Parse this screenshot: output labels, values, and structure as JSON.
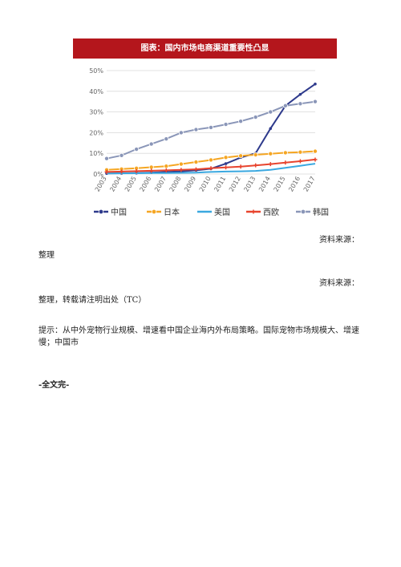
{
  "chart_title": "图表：国内市场电商渠道重要性凸显",
  "chart_data": {
    "type": "line",
    "title": "图表：国内市场电商渠道重要性凸显",
    "categories": [
      "2003",
      "2004",
      "2005",
      "2006",
      "2007",
      "2008",
      "2009",
      "2010",
      "2011",
      "2012",
      "2013",
      "2014",
      "2015",
      "2016",
      "2017"
    ],
    "y_ticks": [
      "0%",
      "10%",
      "20%",
      "30%",
      "40%",
      "50%"
    ],
    "ylim": [
      0,
      50
    ],
    "legend_position": "bottom",
    "series": [
      {
        "name": "中国",
        "color": "#2e3a8c",
        "marker": "dot",
        "values": [
          0.3,
          0.4,
          0.5,
          0.7,
          1,
          1.3,
          1.8,
          2.6,
          5,
          8,
          10,
          22,
          33,
          38.5,
          43.5
        ]
      },
      {
        "name": "日本",
        "color": "#f5a623",
        "marker": "circle",
        "values": [
          2,
          2.4,
          2.8,
          3.3,
          3.8,
          4.8,
          5.8,
          6.8,
          8,
          8.8,
          9.3,
          9.8,
          10.3,
          10.6,
          11
        ]
      },
      {
        "name": "美国",
        "color": "#3aa8e0",
        "marker": "none",
        "values": [
          0.3,
          0.35,
          0.4,
          0.45,
          0.5,
          0.6,
          0.7,
          1,
          1.2,
          1.3,
          1.5,
          2,
          3,
          4,
          5
        ]
      },
      {
        "name": "西欧",
        "color": "#e8442e",
        "marker": "star",
        "values": [
          1,
          1.2,
          1.4,
          1.6,
          1.8,
          2,
          2.3,
          2.8,
          3.2,
          3.6,
          4.2,
          4.8,
          5.5,
          6.2,
          7
        ]
      },
      {
        "name": "韩国",
        "color": "#8a96b8",
        "marker": "circle",
        "values": [
          7.5,
          9,
          12,
          14.5,
          17,
          20,
          21.5,
          22.5,
          24,
          25.5,
          27.5,
          30,
          33,
          34,
          35
        ]
      }
    ]
  },
  "texts": {
    "source1": "资料来源：",
    "organize1": "整理",
    "source2": "资料来源：",
    "organize2": "整理，转载请注明出处（TC）",
    "tip": "提示：从中外宠物行业规模、增速看中国企业海内外布局策略。国际宠物市场规模大、增速慢；中国市",
    "end": "-全文完-"
  }
}
